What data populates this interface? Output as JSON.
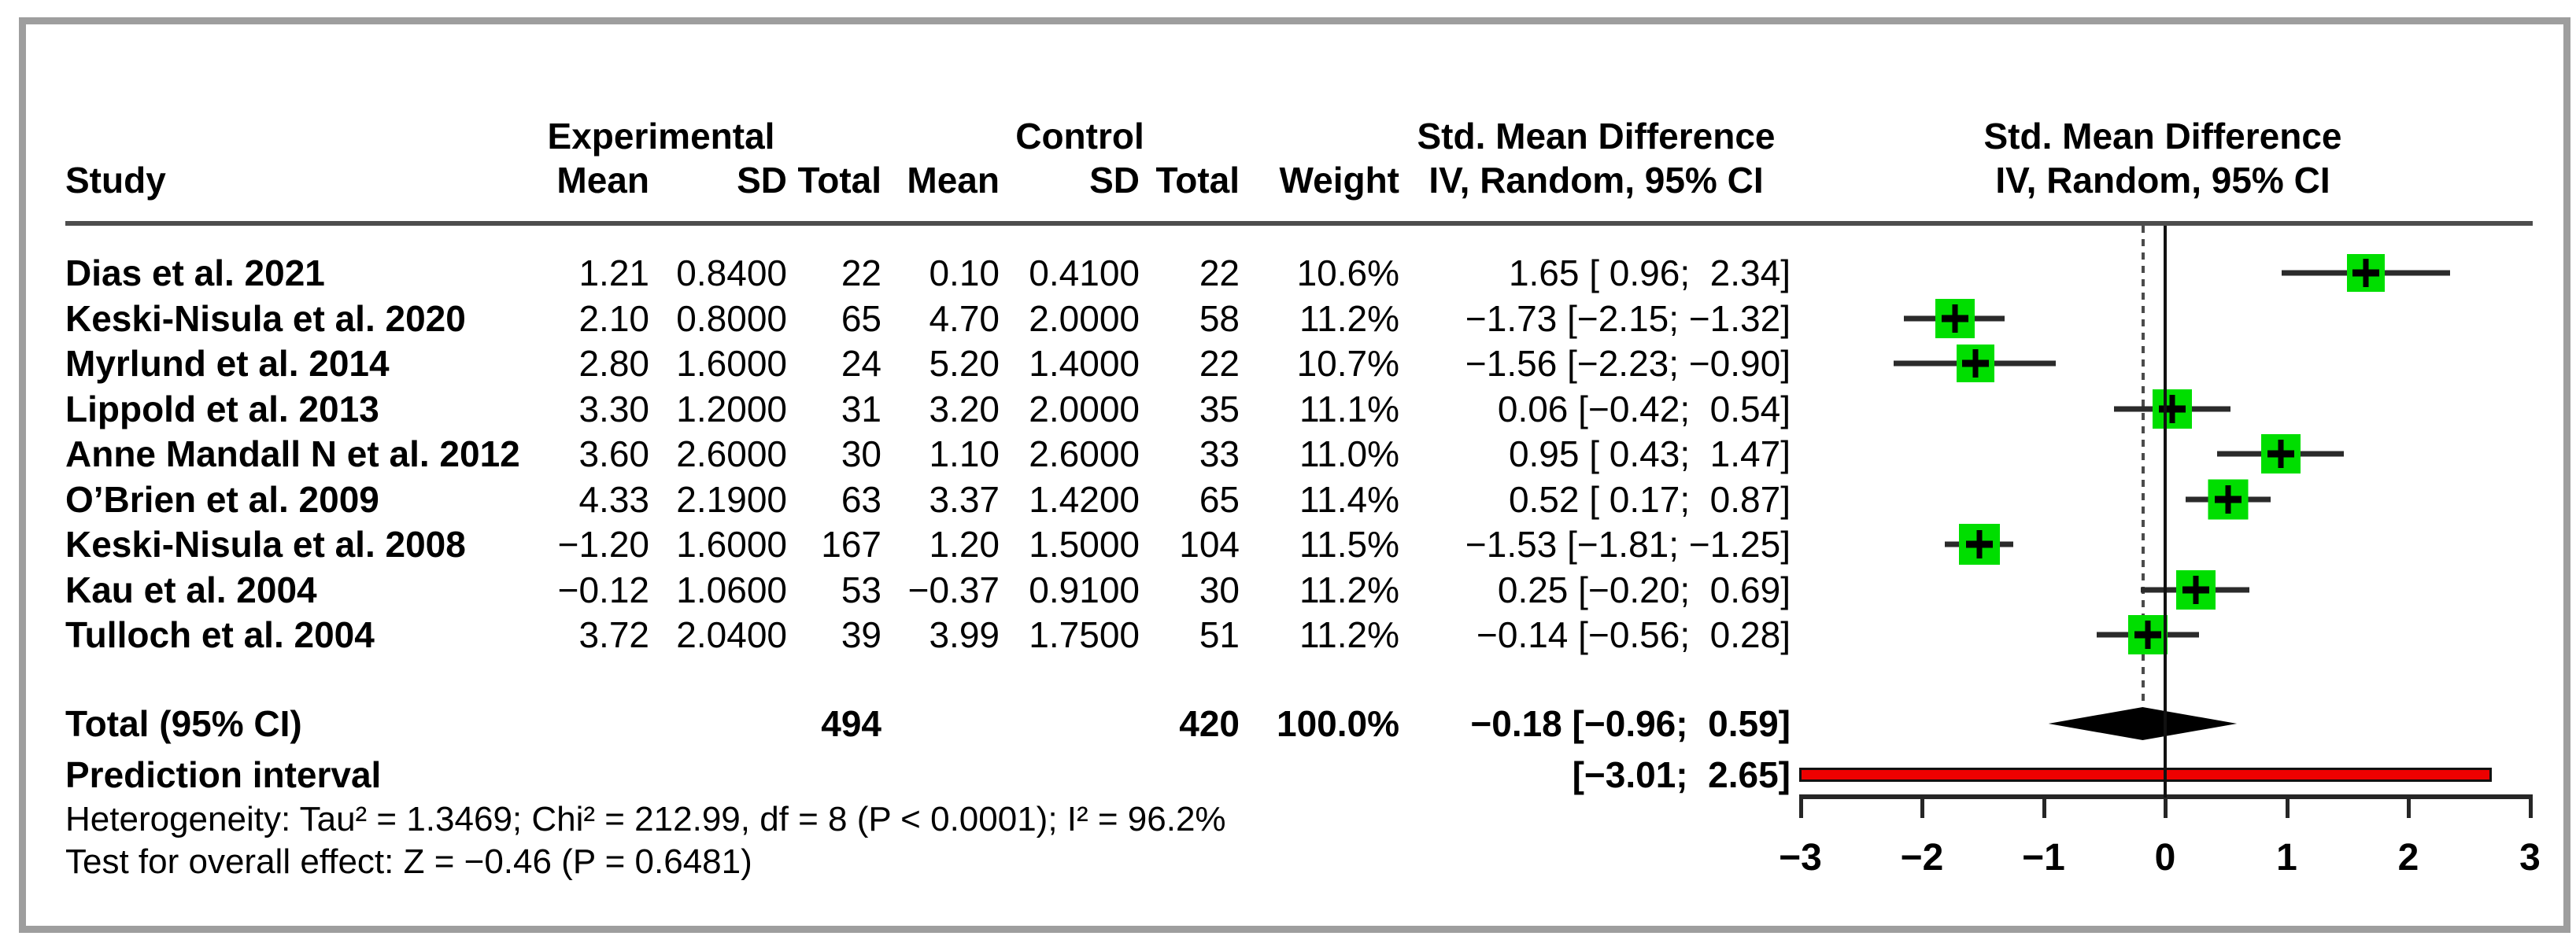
{
  "header": {
    "study": "Study",
    "experimental": "Experimental",
    "control": "Control",
    "mean_exp": "Mean",
    "sd_exp": "SD",
    "total_exp": "Total",
    "mean_ctl": "Mean",
    "sd_ctl": "SD",
    "total_ctl": "Total",
    "weight": "Weight",
    "smd_line1": "Std. Mean Difference",
    "smd_line2": "IV, Random, 95% CI",
    "plot_line1": "Std. Mean Difference",
    "plot_line2": "IV, Random, 95% CI"
  },
  "chart_data": {
    "type": "forest",
    "effect_measure": "Std. Mean Difference",
    "model": "IV, Random, 95% CI",
    "studies": [
      {
        "name": "Dias et al. 2021",
        "mean_e": "1.21",
        "sd_e": "0.8400",
        "n_e": "22",
        "mean_c": "0.10",
        "sd_c": "0.4100",
        "n_c": "22",
        "weight": "10.6%",
        "weight_pct": 10.6,
        "smd": 1.65,
        "ci_lower": 0.96,
        "ci_upper": 2.34,
        "ci_text": "1.65 [ 0.96;  2.34]"
      },
      {
        "name": "Keski-Nisula et al. 2020",
        "mean_e": "2.10",
        "sd_e": "0.8000",
        "n_e": "65",
        "mean_c": "4.70",
        "sd_c": "2.0000",
        "n_c": "58",
        "weight": "11.2%",
        "weight_pct": 11.2,
        "smd": -1.73,
        "ci_lower": -2.15,
        "ci_upper": -1.32,
        "ci_text": "−1.73 [−2.15; −1.32]"
      },
      {
        "name": "Myrlund et al. 2014",
        "mean_e": "2.80",
        "sd_e": "1.6000",
        "n_e": "24",
        "mean_c": "5.20",
        "sd_c": "1.4000",
        "n_c": "22",
        "weight": "10.7%",
        "weight_pct": 10.7,
        "smd": -1.56,
        "ci_lower": -2.23,
        "ci_upper": -0.9,
        "ci_text": "−1.56 [−2.23; −0.90]"
      },
      {
        "name": "Lippold et al. 2013",
        "mean_e": "3.30",
        "sd_e": "1.2000",
        "n_e": "31",
        "mean_c": "3.20",
        "sd_c": "2.0000",
        "n_c": "35",
        "weight": "11.1%",
        "weight_pct": 11.1,
        "smd": 0.06,
        "ci_lower": -0.42,
        "ci_upper": 0.54,
        "ci_text": "0.06 [−0.42;  0.54]"
      },
      {
        "name": "Anne Mandall N et al. 2012",
        "mean_e": "3.60",
        "sd_e": "2.6000",
        "n_e": "30",
        "mean_c": "1.10",
        "sd_c": "2.6000",
        "n_c": "33",
        "weight": "11.0%",
        "weight_pct": 11.0,
        "smd": 0.95,
        "ci_lower": 0.43,
        "ci_upper": 1.47,
        "ci_text": "0.95 [ 0.43;  1.47]"
      },
      {
        "name": "O’Brien et al. 2009",
        "mean_e": "4.33",
        "sd_e": "2.1900",
        "n_e": "63",
        "mean_c": "3.37",
        "sd_c": "1.4200",
        "n_c": "65",
        "weight": "11.4%",
        "weight_pct": 11.4,
        "smd": 0.52,
        "ci_lower": 0.17,
        "ci_upper": 0.87,
        "ci_text": "0.52 [ 0.17;  0.87]"
      },
      {
        "name": "Keski-Nisula et al. 2008",
        "mean_e": "−1.20",
        "sd_e": "1.6000",
        "n_e": "167",
        "mean_c": "1.20",
        "sd_c": "1.5000",
        "n_c": "104",
        "weight": "11.5%",
        "weight_pct": 11.5,
        "smd": -1.53,
        "ci_lower": -1.81,
        "ci_upper": -1.25,
        "ci_text": "−1.53 [−1.81; −1.25]"
      },
      {
        "name": "Kau et al. 2004",
        "mean_e": "−0.12",
        "sd_e": "1.0600",
        "n_e": "53",
        "mean_c": "−0.37",
        "sd_c": "0.9100",
        "n_c": "30",
        "weight": "11.2%",
        "weight_pct": 11.2,
        "smd": 0.25,
        "ci_lower": -0.2,
        "ci_upper": 0.69,
        "ci_text": "0.25 [−0.20;  0.69]"
      },
      {
        "name": "Tulloch et al. 2004",
        "mean_e": "3.72",
        "sd_e": "2.0400",
        "n_e": "39",
        "mean_c": "3.99",
        "sd_c": "1.7500",
        "n_c": "51",
        "weight": "11.2%",
        "weight_pct": 11.2,
        "smd": -0.14,
        "ci_lower": -0.56,
        "ci_upper": 0.28,
        "ci_text": "−0.14 [−0.56;  0.28]"
      }
    ],
    "total": {
      "label": "Total (95% CI)",
      "n_e": "494",
      "n_c": "420",
      "weight": "100.0%",
      "smd": -0.18,
      "ci_lower": -0.96,
      "ci_upper": 0.59,
      "ci_text": "−0.18 [−0.96;  0.59]"
    },
    "prediction": {
      "label": "Prediction interval",
      "ci_lower": -3.01,
      "ci_upper": 2.65,
      "ci_text": "[−3.01;  2.65]"
    },
    "axis": {
      "min": -3,
      "max": 3,
      "ticks": [
        -3,
        -2,
        -1,
        0,
        1,
        2,
        3
      ],
      "zero_line": 0,
      "pooled_line": -0.18
    },
    "colors": {
      "square": "#00de00",
      "diamond": "#000000",
      "prediction_bar": "#ee0000",
      "ci_line": "#2b2b2b"
    }
  },
  "footnotes": {
    "heterogeneity": "Heterogeneity: Tau² = 1.3469; Chi² = 212.99, df = 8 (P < 0.0001); I² = 96.2%",
    "overall_effect": "Test for overall effect: Z = −0.46 (P = 0.6481)"
  }
}
